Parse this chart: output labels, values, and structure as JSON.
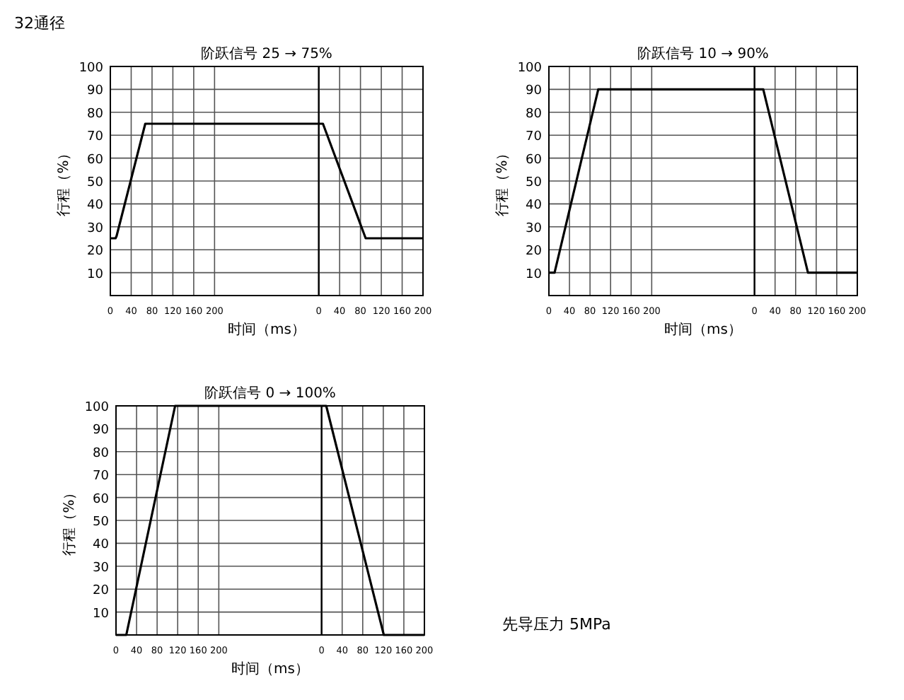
{
  "chart_data": [
    {
      "type": "line",
      "title": "阶跃信号 25 → 75%",
      "xlabel": "时间（ms）",
      "ylabel": "行程（%）",
      "annotations": [
        "32通径"
      ],
      "x": [
        0,
        10,
        12,
        67,
        400
      ],
      "series": [
        {
          "color": "#000000",
          "values": [
            25,
            25,
            26,
            75,
            75
          ]
        }
      ],
      "xlim": [
        0,
        400
      ],
      "ylim": [
        0,
        100
      ],
      "xticks": [
        0,
        40,
        80,
        120,
        160,
        200
      ],
      "yticks": [
        10,
        20,
        30,
        40,
        50,
        60,
        70,
        80,
        90,
        100
      ],
      "grid": true
    },
    {
      "type": "line",
      "x": [
        0,
        8,
        90,
        200
      ],
      "series": [
        {
          "color": "#000000",
          "values": [
            75,
            75,
            25,
            25
          ]
        }
      ],
      "xlim": [
        0,
        200
      ],
      "ylim": [
        0,
        100
      ],
      "xticks": [
        0,
        40,
        80,
        120,
        160,
        200
      ],
      "yticks": [
        10,
        20,
        30,
        40,
        50,
        60,
        70,
        80,
        90,
        100
      ],
      "grid": true,
      "tick_labels": "x"
    },
    {
      "type": "line",
      "title": "阶跃信号 10 → 90%",
      "xlabel": "时间（ms）",
      "ylabel": "行程（%）",
      "x": [
        0,
        11,
        96,
        400
      ],
      "series": [
        {
          "color": "#000000",
          "values": [
            10,
            10,
            90,
            90
          ]
        }
      ],
      "xlim": [
        0,
        400
      ],
      "ylim": [
        0,
        100
      ],
      "xticks": [
        0,
        40,
        80,
        120,
        160,
        200
      ],
      "yticks": [
        10,
        20,
        30,
        40,
        50,
        60,
        70,
        80,
        90,
        100
      ],
      "grid": true
    },
    {
      "type": "line",
      "x": [
        0,
        17,
        104,
        200
      ],
      "series": [
        {
          "color": "#000000",
          "values": [
            90,
            90,
            10,
            10
          ]
        }
      ],
      "xlim": [
        0,
        200
      ],
      "ylim": [
        0,
        100
      ],
      "xticks": [
        0,
        40,
        80,
        120,
        160,
        200
      ],
      "yticks": [
        10,
        20,
        30,
        40,
        50,
        60,
        70,
        80,
        90,
        100
      ],
      "grid": true,
      "tick_labels": "x"
    },
    {
      "type": "line",
      "title": "阶跃信号 0 → 100%",
      "xlabel": "时间（ms）",
      "ylabel": "行程（%）",
      "annotations": [
        "先导压力 5MPa"
      ],
      "x": [
        0,
        20,
        115,
        400
      ],
      "series": [
        {
          "color": "#000000",
          "values": [
            0,
            0,
            100,
            100
          ]
        }
      ],
      "xlim": [
        0,
        400
      ],
      "ylim": [
        0,
        100
      ],
      "xticks": [
        0,
        40,
        80,
        120,
        160,
        200
      ],
      "yticks": [
        10,
        20,
        30,
        40,
        50,
        60,
        70,
        80,
        90,
        100
      ],
      "grid": true
    },
    {
      "type": "line",
      "x": [
        0,
        9,
        121,
        200
      ],
      "series": [
        {
          "color": "#000000",
          "values": [
            100,
            100,
            0,
            0
          ]
        }
      ],
      "xlim": [
        0,
        200
      ],
      "ylim": [
        0,
        100
      ],
      "xticks": [
        0,
        40,
        80,
        120,
        160,
        200
      ],
      "yticks": [
        10,
        20,
        30,
        40,
        50,
        60,
        70,
        80,
        90,
        100
      ],
      "grid": true,
      "tick_labels": "x"
    }
  ]
}
